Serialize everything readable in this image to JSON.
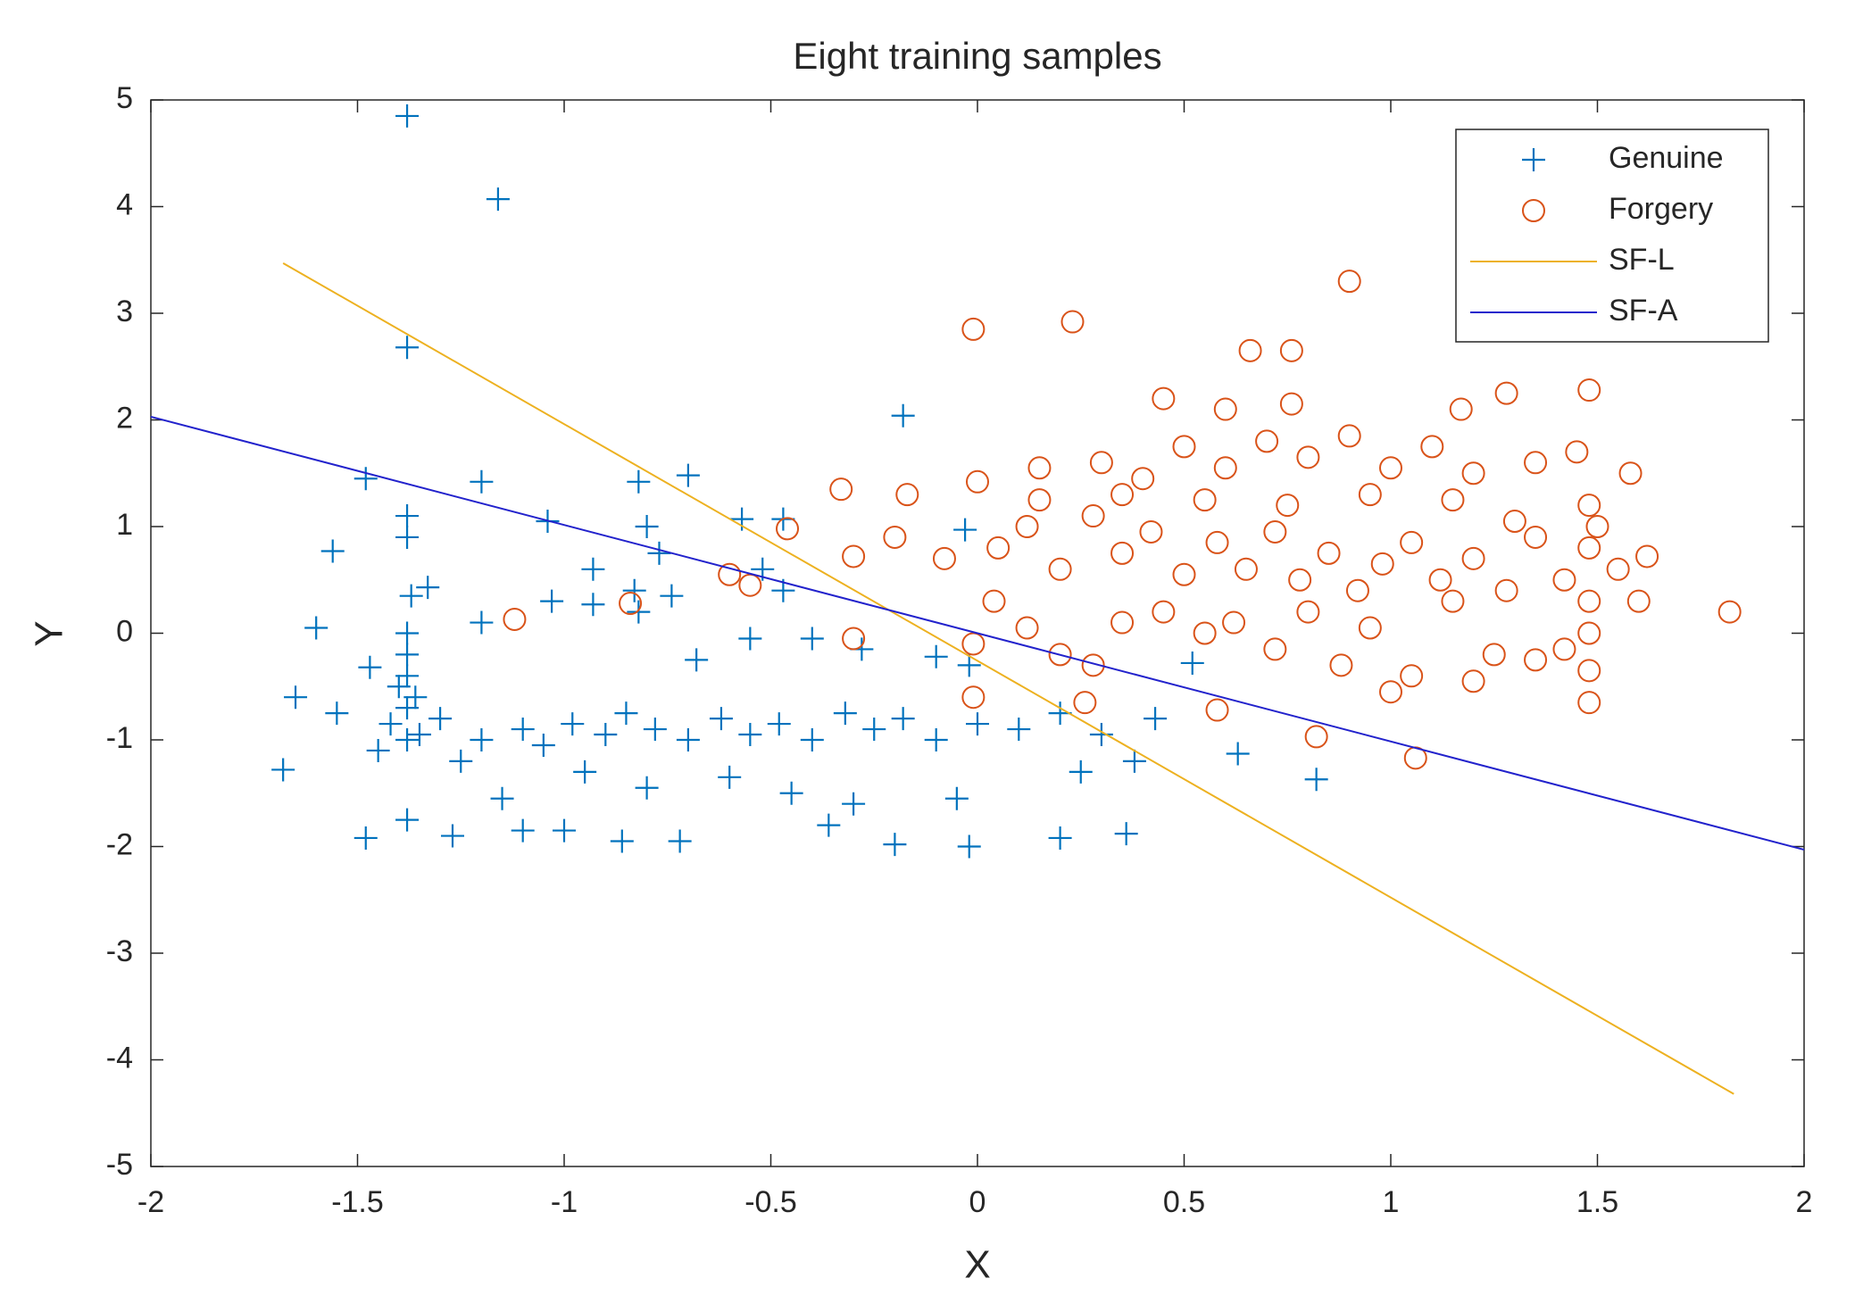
{
  "chart_data": {
    "type": "scatter",
    "title": "Eight training samples",
    "x_label": "X",
    "y_label": "Y",
    "xlim": [
      -2,
      2
    ],
    "ylim": [
      -5,
      5
    ],
    "xticks": [
      -2,
      -1.5,
      -1,
      -0.5,
      0,
      0.5,
      1,
      1.5,
      2
    ],
    "yticks": [
      -5,
      -4,
      -3,
      -2,
      -1,
      0,
      1,
      2,
      3,
      4,
      5
    ],
    "legend": "upper right",
    "series": [
      {
        "name": "Genuine",
        "color": "#0072bd",
        "marker": "+",
        "x": [
          -1.38,
          -1.16,
          -1.38,
          -0.18,
          -1.48,
          -1.2,
          -0.82,
          -0.7,
          -1.38,
          -1.04,
          -0.57,
          -0.47,
          -0.8,
          -0.03,
          -1.38,
          -1.56,
          -0.77,
          -0.93,
          -0.52,
          -1.33,
          -1.37,
          -0.83,
          -0.74,
          -1.03,
          -0.93,
          -0.47,
          -1.6,
          -1.2,
          -1.38,
          -0.82,
          -0.55,
          -0.4,
          -0.28,
          -0.1,
          -1.47,
          -0.68,
          -0.02,
          0.52,
          -1.65,
          -1.55,
          -1.42,
          -1.38,
          -1.35,
          -1.3,
          -1.2,
          -1.1,
          -1.05,
          -0.98,
          -0.9,
          -0.85,
          -0.78,
          -0.7,
          -0.62,
          -0.55,
          -0.48,
          -0.4,
          -0.32,
          -0.25,
          -0.18,
          -0.1,
          0,
          0.1,
          0.2,
          0.3,
          0.43,
          0.63,
          0.82,
          -1.68,
          -1.45,
          -1.25,
          -1.15,
          -0.95,
          -0.8,
          -0.6,
          -0.45,
          -0.3,
          -0.05,
          0.25,
          0.38,
          -1.48,
          -1.38,
          -1.27,
          -1.1,
          -1,
          -0.86,
          -0.72,
          -0.36,
          -0.2,
          -0.02,
          0.2,
          0.36,
          -1.38,
          -1.36,
          -1.4,
          -1.38,
          -1.38
        ],
        "values": [
          4.85,
          4.07,
          2.68,
          2.04,
          1.45,
          1.42,
          1.42,
          1.48,
          1.1,
          1.05,
          1.07,
          1.07,
          1,
          0.97,
          0.9,
          0.77,
          0.75,
          0.6,
          0.6,
          0.43,
          0.35,
          0.4,
          0.35,
          0.3,
          0.27,
          0.4,
          0.05,
          0.1,
          0,
          0.2,
          -0.05,
          -0.05,
          -0.15,
          -0.22,
          -0.32,
          -0.25,
          -0.3,
          -0.28,
          -0.6,
          -0.75,
          -0.85,
          -0.7,
          -0.95,
          -0.8,
          -1,
          -0.9,
          -1.05,
          -0.85,
          -0.95,
          -0.75,
          -0.9,
          -1,
          -0.8,
          -0.95,
          -0.85,
          -1,
          -0.75,
          -0.9,
          -0.8,
          -1,
          -0.85,
          -0.9,
          -0.75,
          -0.95,
          -0.8,
          -1.13,
          -1.37,
          -1.28,
          -1.1,
          -1.2,
          -1.55,
          -1.3,
          -1.45,
          -1.35,
          -1.5,
          -1.6,
          -1.55,
          -1.3,
          -1.2,
          -1.92,
          -1.75,
          -1.9,
          -1.85,
          -1.85,
          -1.95,
          -1.95,
          -1.8,
          -1.98,
          -2,
          -1.92,
          -1.88,
          -1,
          -0.6,
          -0.5,
          -0.2,
          -0.4
        ]
      },
      {
        "name": "Forgery",
        "color": "#d95319",
        "marker": "o",
        "x": [
          0.9,
          -0.01,
          0.23,
          0.66,
          0.76,
          1.28,
          1.48,
          0.45,
          0.6,
          0.76,
          1.17,
          -0.33,
          -0.17,
          0,
          0.15,
          0.3,
          0.4,
          0.5,
          0.6,
          0.7,
          0.8,
          0.9,
          1,
          1.1,
          1.2,
          1.35,
          1.45,
          1.58,
          -0.46,
          -0.3,
          -0.2,
          -0.08,
          0.05,
          0.12,
          0.2,
          0.28,
          0.35,
          0.42,
          0.5,
          0.58,
          0.65,
          0.72,
          0.78,
          0.85,
          0.92,
          0.98,
          1.05,
          1.12,
          1.2,
          1.28,
          1.35,
          1.42,
          1.48,
          1.48,
          1.48,
          1.48,
          1.55,
          1.62,
          1.6,
          1.82,
          -0.6,
          -0.55,
          -0.84,
          -1.12,
          -0.3,
          -0.01,
          0.04,
          0.12,
          0.2,
          0.28,
          0.35,
          0.45,
          0.55,
          0.62,
          0.72,
          0.8,
          0.88,
          0.95,
          1,
          1.05,
          1.15,
          1.2,
          1.25,
          1.35,
          1.42,
          1.48,
          1.48,
          0.82,
          1.06,
          0.58,
          0.26,
          -0.01,
          0.15,
          0.35,
          0.55,
          0.75,
          0.95,
          1.15,
          1.3,
          1.5
        ],
        "values": [
          3.3,
          2.85,
          2.92,
          2.65,
          2.65,
          2.25,
          2.28,
          2.2,
          2.1,
          2.15,
          2.1,
          1.35,
          1.3,
          1.42,
          1.55,
          1.6,
          1.45,
          1.75,
          1.55,
          1.8,
          1.65,
          1.85,
          1.55,
          1.75,
          1.5,
          1.6,
          1.7,
          1.5,
          0.98,
          0.72,
          0.9,
          0.7,
          0.8,
          1,
          0.6,
          1.1,
          0.75,
          0.95,
          0.55,
          0.85,
          0.6,
          0.95,
          0.5,
          0.75,
          0.4,
          0.65,
          0.85,
          0.5,
          0.7,
          0.4,
          0.9,
          0.5,
          0.8,
          0.3,
          1.2,
          0,
          0.6,
          0.72,
          0.3,
          0.2,
          0.55,
          0.45,
          0.28,
          0.13,
          -0.05,
          -0.1,
          0.3,
          0.05,
          -0.2,
          -0.3,
          0.1,
          0.2,
          0,
          0.1,
          -0.15,
          0.2,
          -0.3,
          0.05,
          -0.55,
          -0.4,
          0.3,
          -0.45,
          -0.2,
          -0.25,
          -0.15,
          -0.35,
          -0.65,
          -0.97,
          -1.17,
          -0.72,
          -0.65,
          -0.6,
          1.25,
          1.3,
          1.25,
          1.2,
          1.3,
          1.25,
          1.05,
          1
        ]
      },
      {
        "name": "SF-L",
        "color": "#edb120",
        "marker": "line",
        "x": [
          -1.68,
          1.83
        ],
        "values": [
          3.47,
          -4.32
        ]
      },
      {
        "name": "SF-A",
        "color": "#2222cc",
        "marker": "line",
        "x": [
          -2,
          2
        ],
        "values": [
          2.03,
          -2.03
        ]
      }
    ]
  }
}
